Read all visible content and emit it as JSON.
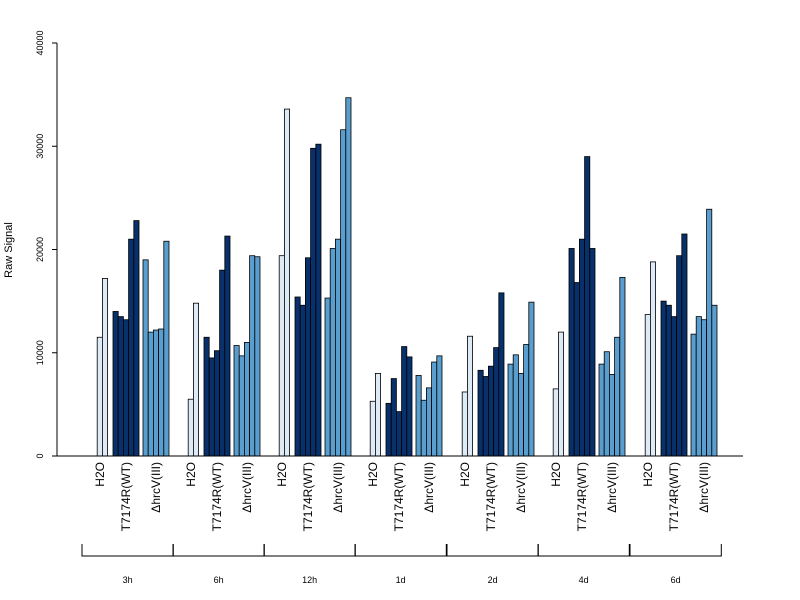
{
  "chart_data": {
    "type": "bar",
    "ylabel": "Raw Signal",
    "xlabel": "",
    "title": "",
    "ylim": [
      0,
      40000
    ],
    "yticks": [
      0,
      10000,
      20000,
      30000,
      40000
    ],
    "time_points": [
      "3h",
      "6h",
      "12h",
      "1d",
      "2d",
      "4d",
      "6d"
    ],
    "treatments": [
      "H2O",
      "T7174R(WT)",
      "ΔhrcV(III)"
    ],
    "colors": {
      "H2O": "#deebf7",
      "T7174R(WT)": "#08306b",
      "ΔhrcV(III)": "#5a9ecf"
    },
    "values": {
      "3h": {
        "H2O": [
          0,
          11500,
          17200
        ],
        "T7174R(WT)": [
          14000,
          13500,
          13200,
          21000,
          22800
        ],
        "ΔhrcV(III)": [
          19000,
          12000,
          12200,
          12300,
          20800
        ]
      },
      "6h": {
        "H2O": [
          0,
          5500,
          14800
        ],
        "T7174R(WT)": [
          11500,
          9500,
          10200,
          18000,
          21300
        ],
        "ΔhrcV(III)": [
          10700,
          9700,
          11000,
          19400,
          19300
        ]
      },
      "12h": {
        "H2O": [
          0,
          19400,
          33600
        ],
        "T7174R(WT)": [
          15400,
          14600,
          19200,
          29800,
          30200
        ],
        "ΔhrcV(III)": [
          15300,
          20100,
          21000,
          31600,
          34700
        ]
      },
      "1d": {
        "H2O": [
          0,
          5300,
          8000
        ],
        "T7174R(WT)": [
          5100,
          7500,
          4300,
          10600,
          9600
        ],
        "ΔhrcV(III)": [
          7800,
          5400,
          6600,
          9100,
          9700
        ]
      },
      "2d": {
        "H2O": [
          0,
          6200,
          11600
        ],
        "T7174R(WT)": [
          8300,
          7700,
          8700,
          10500,
          15800
        ],
        "ΔhrcV(III)": [
          8900,
          9800,
          8000,
          10800,
          14900
        ]
      },
      "4d": {
        "H2O": [
          0,
          6500,
          12000
        ],
        "T7174R(WT)": [
          20100,
          16800,
          21000,
          29000,
          20100
        ],
        "ΔhrcV(III)": [
          8900,
          10100,
          7900,
          11500,
          17300
        ]
      },
      "6d": {
        "H2O": [
          0,
          13700,
          18800
        ],
        "T7174R(WT)": [
          15000,
          14600,
          13500,
          19400,
          21500
        ],
        "ΔhrcV(III)": [
          11800,
          13500,
          13200,
          23900,
          14600
        ]
      }
    }
  }
}
